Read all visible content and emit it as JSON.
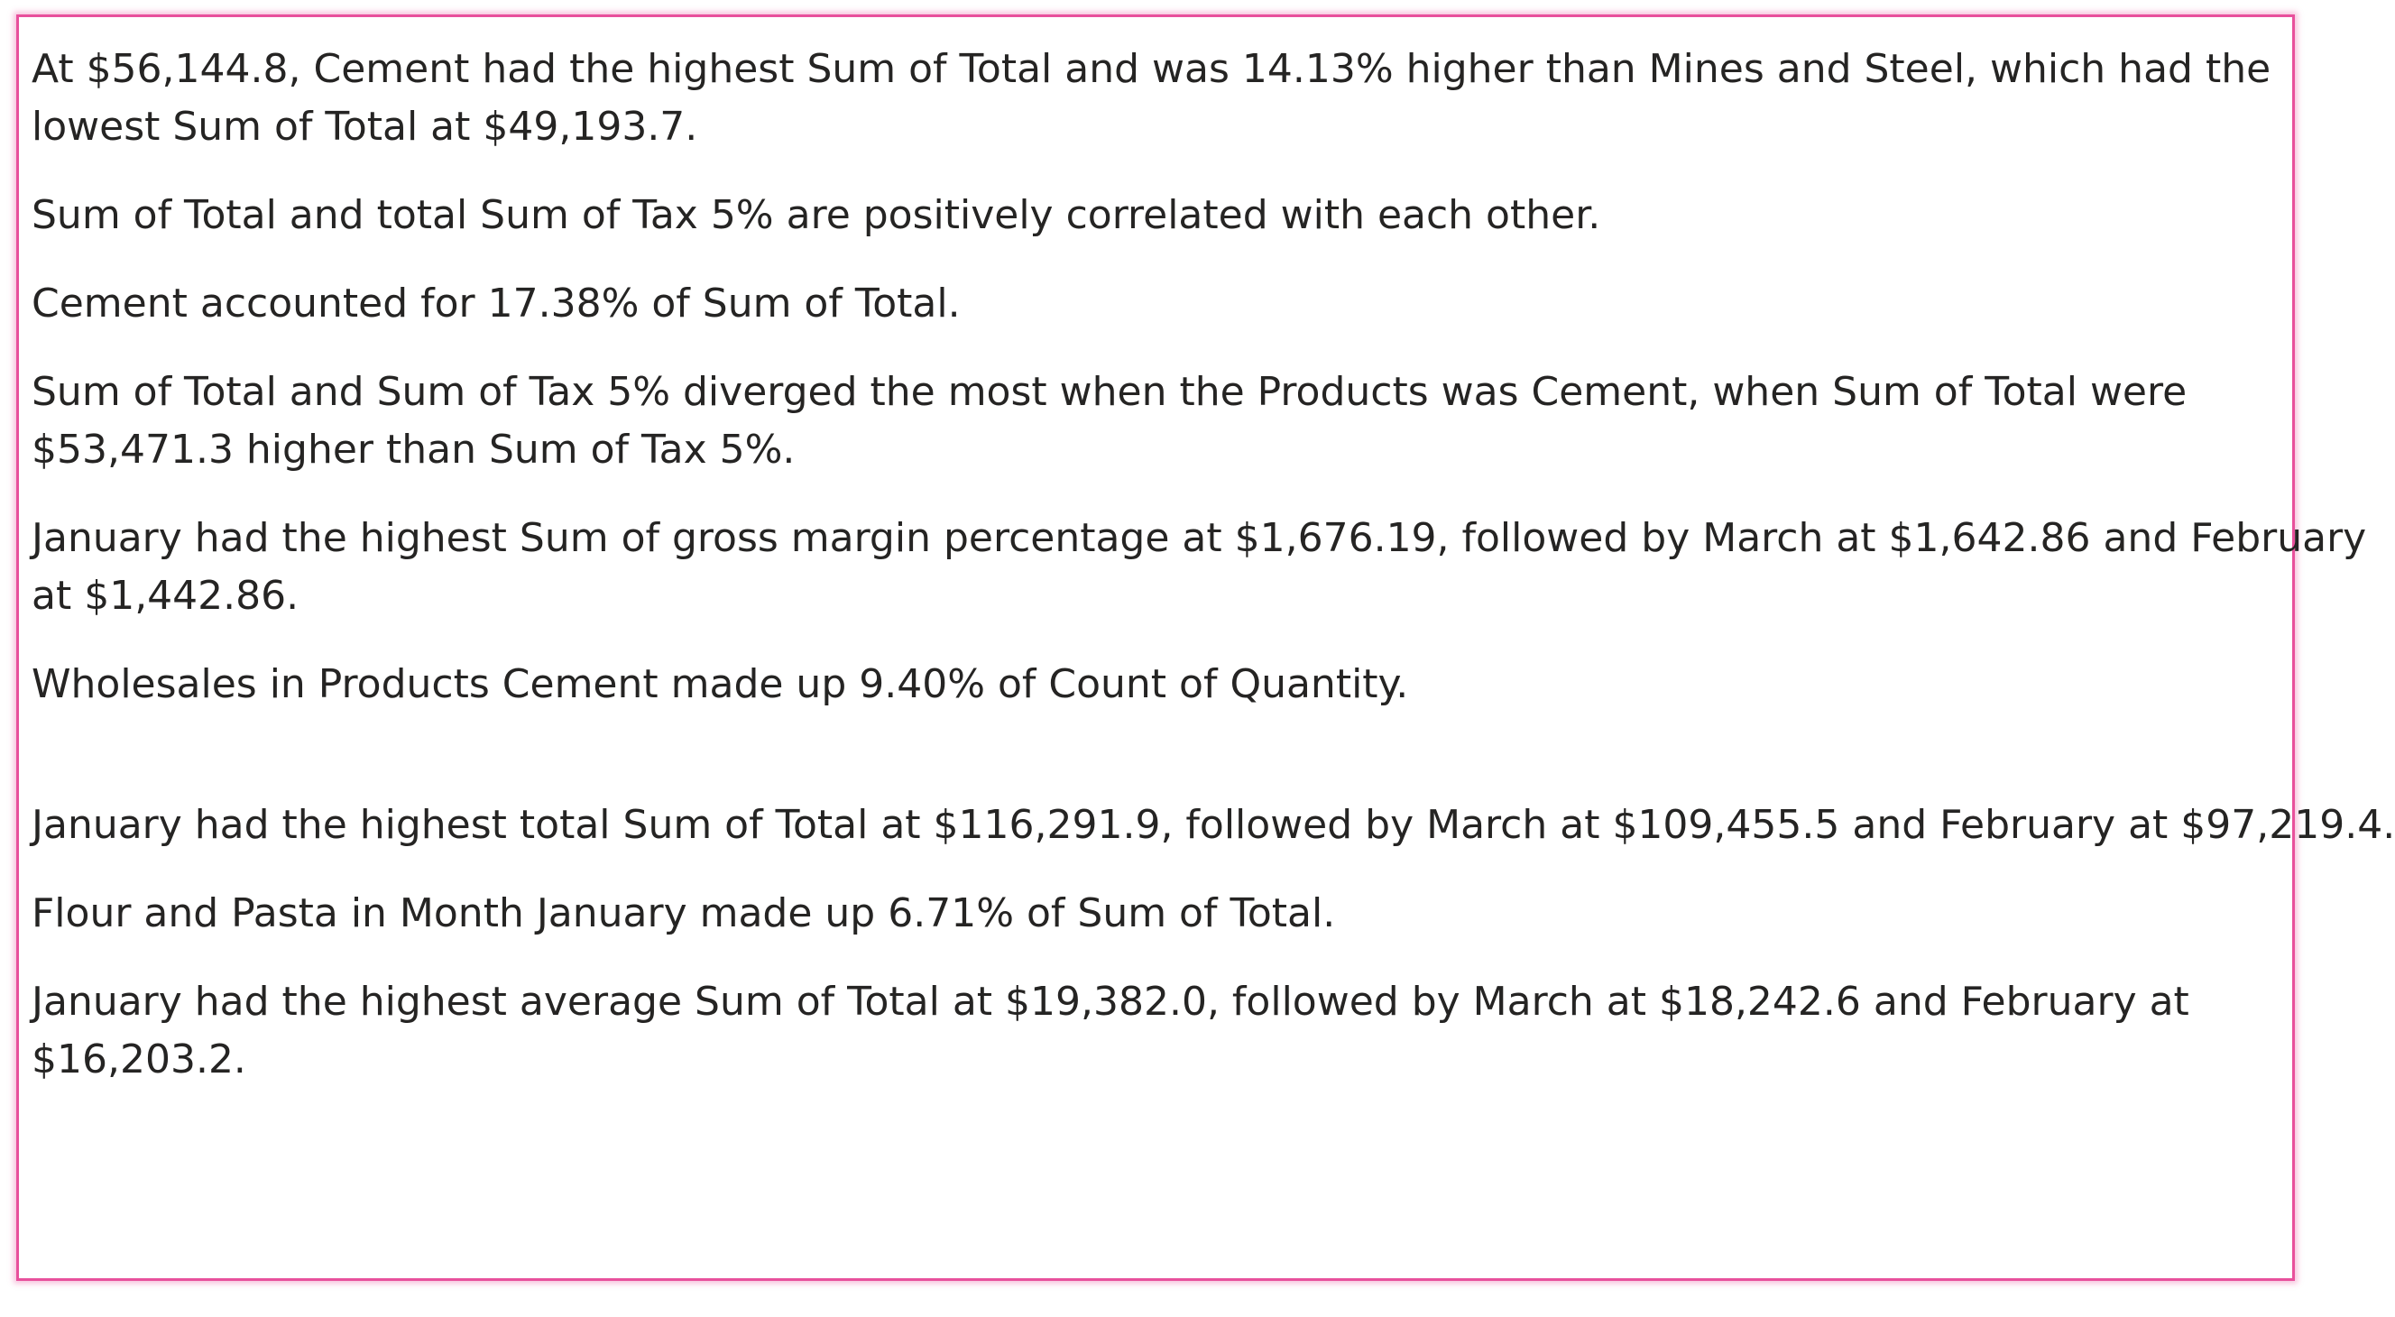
{
  "accent_color": "#e8509c",
  "text_color": "#252423",
  "insights": [
    {
      "lines": [
        "At $56,144.8, Cement had the highest Sum of Total and was 14.13% higher than Mines and Steel, which had the",
        "lowest Sum of Total at $49,193.7."
      ]
    },
    {
      "lines": [
        "Sum of Total and total Sum of Tax 5% are positively correlated with each other."
      ]
    },
    {
      "lines": [
        "Cement accounted for 17.38% of Sum of Total."
      ]
    },
    {
      "lines": [
        "Sum of Total and Sum of Tax 5% diverged the most when the Products was Cement, when Sum of Total were",
        "$53,471.3 higher than Sum of Tax 5%."
      ]
    },
    {
      "lines": [
        "January had the highest Sum of gross margin percentage at $1,676.19, followed by March at $1,642.86 and February",
        "at $1,442.86."
      ]
    },
    {
      "lines": [
        "Wholesales in Products Cement made up 9.40% of Count of Quantity."
      ]
    },
    {
      "lines": [
        "January had the highest total Sum of Total at $116,291.9, followed by March at $109,455.5 and February at $97,219.4."
      ]
    },
    {
      "lines": [
        "Flour and Pasta in Month January made up 6.71% of Sum of Total."
      ]
    },
    {
      "lines": [
        "January had the highest average Sum of Total at $19,382.0, followed by March at $18,242.6 and February at",
        "$16,203.2."
      ]
    }
  ]
}
